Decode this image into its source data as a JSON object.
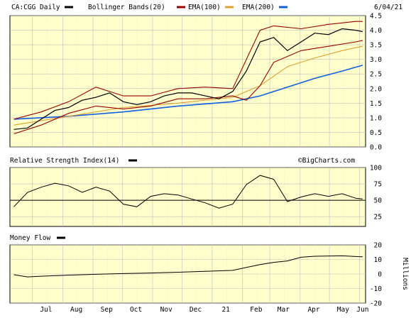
{
  "chart_data": [
    {
      "type": "line",
      "panel": "price",
      "title": "CA:CGG Daily",
      "date": "6/04/21",
      "legend": [
        {
          "label": "CA:CGG Daily",
          "color": "#000000"
        },
        {
          "label": "Bollinger Bands(20)",
          "color": "#990000"
        },
        {
          "label": "EMA(100)",
          "color": "#e0a030"
        },
        {
          "label": "EMA(200)",
          "color": "#1060e0"
        }
      ],
      "x_tick_labels": [
        "Jul",
        "Aug",
        "Sep",
        "Oct",
        "Nov",
        "Dec",
        "21",
        "Feb",
        "Mar",
        "Apr",
        "May",
        "Jun"
      ],
      "y_ticks": [
        "4.5",
        "4.0",
        "3.5",
        "3.0",
        "2.5",
        "2.0",
        "1.5",
        "1.0",
        "0.5",
        "0.0"
      ],
      "ylim": [
        0,
        4.5
      ],
      "grid": true,
      "series": [
        {
          "name": "CA:CGG Daily",
          "x": [
            "2020-06-12",
            "2020-06-26",
            "2020-07-10",
            "2020-07-24",
            "2020-08-07",
            "2020-08-21",
            "2020-09-04",
            "2020-09-18",
            "2020-10-02",
            "2020-10-16",
            "2020-10-30",
            "2020-11-13",
            "2020-11-27",
            "2020-12-11",
            "2020-12-25",
            "2021-01-08",
            "2021-01-22",
            "2021-02-05",
            "2021-02-19",
            "2021-03-05",
            "2021-03-19",
            "2021-04-02",
            "2021-04-16",
            "2021-04-30",
            "2021-05-14",
            "2021-05-28",
            "2021-06-04"
          ],
          "y": [
            0.6,
            0.65,
            0.95,
            1.25,
            1.35,
            1.6,
            1.7,
            1.85,
            1.55,
            1.45,
            1.55,
            1.75,
            1.85,
            1.85,
            1.75,
            1.65,
            1.9,
            2.6,
            3.6,
            3.75,
            3.3,
            3.6,
            3.9,
            3.85,
            4.05,
            4.0,
            3.95
          ]
        },
        {
          "name": "Bollinger Bands(20) upper",
          "x": [
            "2020-06-12",
            "2020-07-10",
            "2020-08-07",
            "2020-09-04",
            "2020-10-02",
            "2020-10-30",
            "2020-11-27",
            "2020-12-25",
            "2021-01-22",
            "2021-02-05",
            "2021-02-19",
            "2021-03-05",
            "2021-04-02",
            "2021-04-30",
            "2021-05-28",
            "2021-06-04"
          ],
          "y": [
            0.95,
            1.2,
            1.55,
            2.05,
            1.75,
            1.75,
            2.0,
            2.05,
            2.0,
            3.0,
            4.0,
            4.15,
            4.05,
            4.2,
            4.3,
            4.3
          ]
        },
        {
          "name": "Bollinger Bands(20) lower",
          "x": [
            "2020-06-12",
            "2020-07-10",
            "2020-08-07",
            "2020-09-04",
            "2020-10-02",
            "2020-10-30",
            "2020-11-27",
            "2020-12-25",
            "2021-01-22",
            "2021-02-05",
            "2021-02-19",
            "2021-03-05",
            "2021-04-02",
            "2021-04-30",
            "2021-05-28",
            "2021-06-04"
          ],
          "y": [
            0.45,
            0.75,
            1.15,
            1.4,
            1.3,
            1.4,
            1.65,
            1.65,
            1.75,
            1.6,
            2.1,
            2.9,
            3.3,
            3.45,
            3.6,
            3.65
          ]
        },
        {
          "name": "EMA(100)",
          "x": [
            "2020-06-12",
            "2020-08-07",
            "2020-10-02",
            "2020-11-27",
            "2021-01-22",
            "2021-02-19",
            "2021-03-19",
            "2021-04-16",
            "2021-05-14",
            "2021-06-04"
          ],
          "y": [
            0.75,
            1.05,
            1.35,
            1.5,
            1.7,
            2.1,
            2.75,
            3.05,
            3.3,
            3.45
          ]
        },
        {
          "name": "EMA(200)",
          "x": [
            "2020-06-12",
            "2020-08-07",
            "2020-10-02",
            "2020-11-27",
            "2021-01-22",
            "2021-02-19",
            "2021-03-19",
            "2021-04-16",
            "2021-05-14",
            "2021-06-04"
          ],
          "y": [
            0.95,
            1.05,
            1.2,
            1.4,
            1.55,
            1.75,
            2.05,
            2.35,
            2.6,
            2.8
          ]
        }
      ]
    },
    {
      "type": "line",
      "panel": "rsi",
      "title": "Relative Strength Index(14)",
      "watermark": "©BigCharts.com",
      "y_ticks": [
        "100",
        "75",
        "50",
        "25"
      ],
      "ylim": [
        10,
        100
      ],
      "reference_line": 50,
      "x": [
        "2020-06-12",
        "2020-06-26",
        "2020-07-10",
        "2020-07-24",
        "2020-08-07",
        "2020-08-21",
        "2020-09-04",
        "2020-09-18",
        "2020-10-02",
        "2020-10-16",
        "2020-10-30",
        "2020-11-13",
        "2020-11-27",
        "2020-12-11",
        "2020-12-25",
        "2021-01-08",
        "2021-01-22",
        "2021-02-05",
        "2021-02-19",
        "2021-03-05",
        "2021-03-19",
        "2021-04-02",
        "2021-04-16",
        "2021-04-30",
        "2021-05-14",
        "2021-05-28",
        "2021-06-04"
      ],
      "values": [
        40,
        62,
        70,
        76,
        72,
        62,
        70,
        64,
        44,
        40,
        56,
        60,
        58,
        52,
        46,
        38,
        44,
        74,
        88,
        82,
        48,
        55,
        60,
        56,
        60,
        53,
        52
      ]
    },
    {
      "type": "line",
      "panel": "money_flow",
      "title": "Money Flow",
      "y_ticks": [
        "20",
        "10",
        "0",
        "-10",
        "-20"
      ],
      "ylabel": "Millions",
      "ylim": [
        -20,
        20
      ],
      "reference_line": 0,
      "x": [
        "2020-06-12",
        "2020-06-26",
        "2020-07-10",
        "2020-08-07",
        "2020-09-04",
        "2020-10-02",
        "2020-10-30",
        "2020-11-27",
        "2020-12-25",
        "2021-01-22",
        "2021-02-05",
        "2021-02-19",
        "2021-03-05",
        "2021-03-19",
        "2021-04-02",
        "2021-04-16",
        "2021-05-14",
        "2021-06-04"
      ],
      "values": [
        -0.5,
        -2.0,
        -1.5,
        -0.8,
        -0.2,
        0.3,
        0.7,
        1.2,
        1.8,
        2.5,
        4.5,
        6.5,
        8.0,
        9.0,
        11.5,
        12.2,
        12.5,
        11.8
      ]
    }
  ]
}
